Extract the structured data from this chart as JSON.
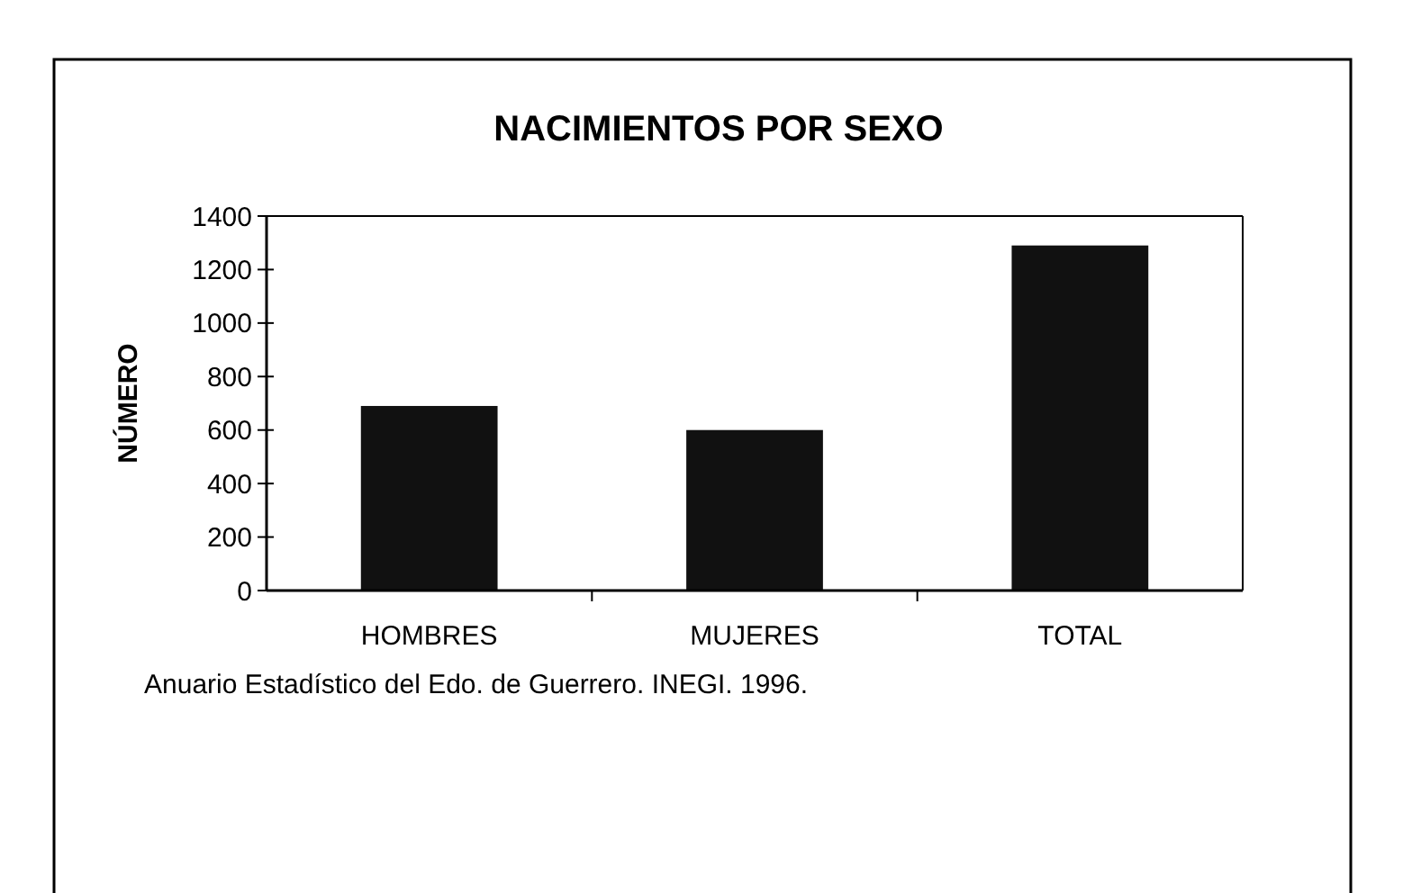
{
  "chart_data": {
    "type": "bar",
    "title": "NACIMIENTOS POR SEXO",
    "ylabel": "NÚMERO",
    "categories": [
      "HOMBRES",
      "MUJERES",
      "TOTAL"
    ],
    "values": [
      690,
      600,
      1290
    ],
    "color": "#111111",
    "ylim": [
      0,
      1400
    ],
    "yticks": [
      0,
      200,
      400,
      600,
      800,
      1000,
      1200,
      1400
    ],
    "grid": false,
    "annotations": [
      "Anuario Estadístico del Edo. de Guerrero. INEGI. 1996."
    ]
  }
}
